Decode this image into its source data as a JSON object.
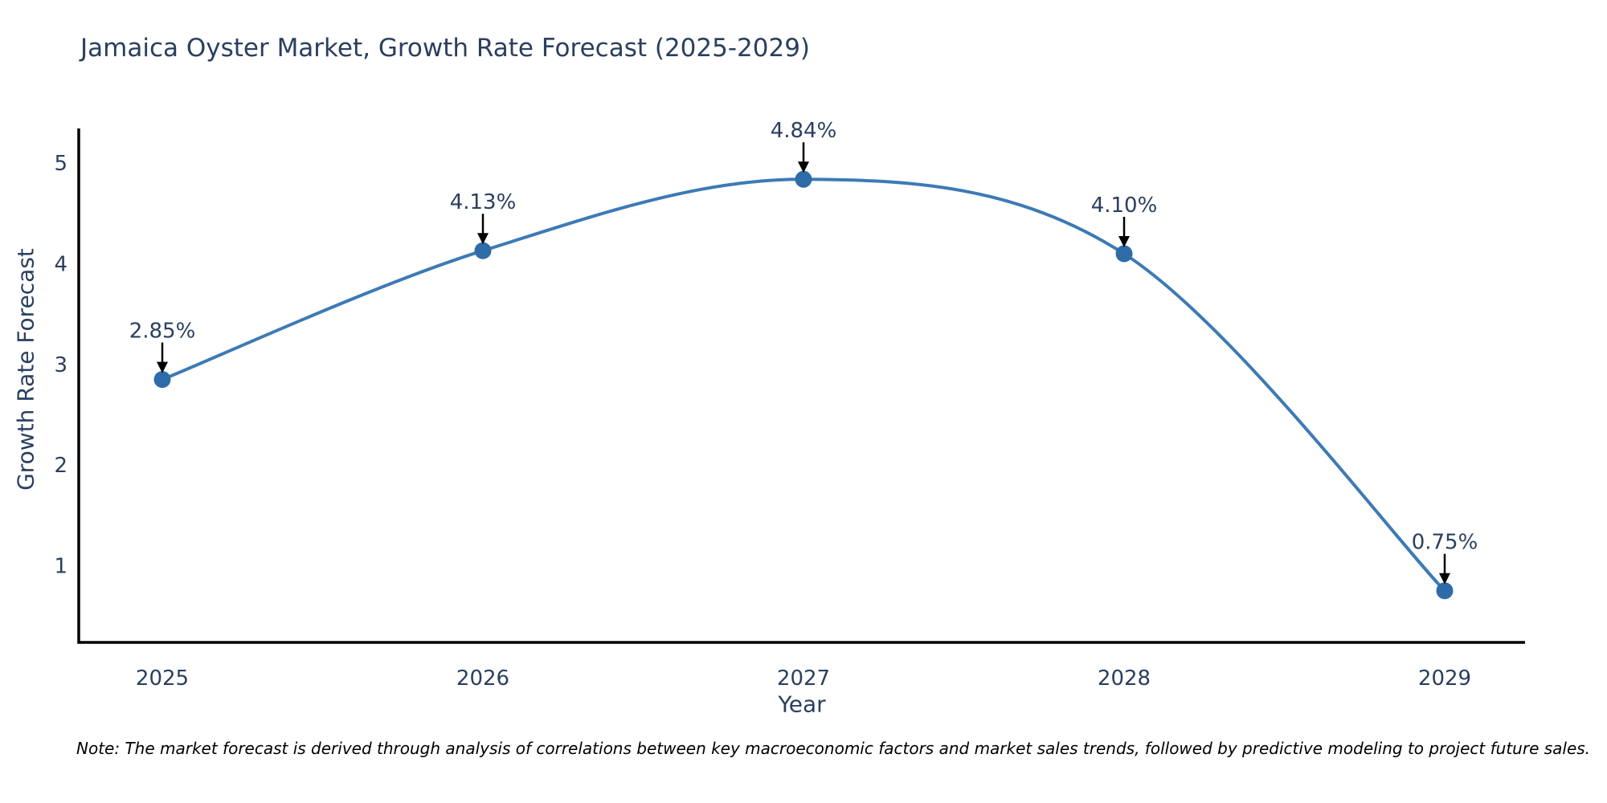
{
  "chart_data": {
    "type": "line",
    "title": "Jamaica Oyster Market, Growth Rate Forecast (2025-2029)",
    "xlabel": "Year",
    "ylabel": "Growth Rate Forecast",
    "categories": [
      "2025",
      "2026",
      "2027",
      "2028",
      "2029"
    ],
    "values": [
      2.85,
      4.13,
      4.84,
      4.1,
      0.75
    ],
    "point_labels": [
      "2.85%",
      "4.13%",
      "4.84%",
      "4.10%",
      "0.75%"
    ],
    "yticks": [
      "1",
      "2",
      "3",
      "4",
      "5"
    ],
    "ytick_values": [
      1,
      2,
      3,
      4,
      5
    ],
    "ylim": [
      0.24,
      5.36
    ],
    "grid": false,
    "legend_position": "none",
    "line_shape": "spline",
    "colors": {
      "line": "#3d7ab5",
      "marker": "#2e6ca8",
      "axis": "#000000",
      "chart_text": "#2a3f5f",
      "annotation_text": "#2a3f5f",
      "annotation_arrow": "#000000",
      "background": "#ffffff"
    }
  },
  "note": "Note: The market forecast is derived through analysis of correlations between key macroeconomic factors and market sales trends, followed by predictive modeling to project future sales."
}
